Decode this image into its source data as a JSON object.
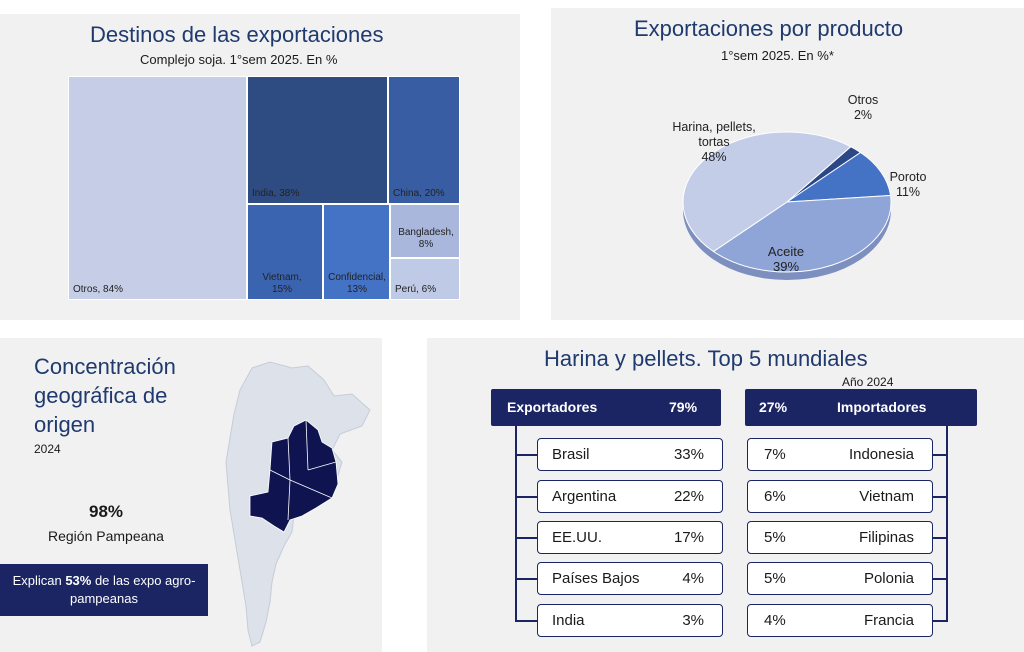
{
  "treemap": {
    "title": "Destinos de las exportaciones",
    "subtitle": "Complejo soja. 1°sem 2025. En %"
  },
  "pie": {
    "title": "Exportaciones por producto",
    "subtitle": "1°sem 2025.  En %*"
  },
  "map_panel": {
    "title": "Concentración geográfica de origen",
    "year": "2024",
    "share": "98%",
    "region": "Región Pampeana",
    "note_prefix": "Explican ",
    "note_bold": "53%",
    "note_suffix": " de las expo agro-pampeanas"
  },
  "top5": {
    "title": "Harina y pellets. Top 5 mundiales",
    "year": "Año 2024",
    "exporters_label": "Exportadores",
    "exporters_total": "79%",
    "importers_label": "Importadores",
    "importers_total": "27%"
  },
  "colors": {
    "navy": "#1b2563",
    "title_blue": "#1f3a6e",
    "panel_bg": "#f1f1f1"
  },
  "chart_data": [
    {
      "type": "treemap",
      "title": "Destinos de las exportaciones",
      "subtitle": "Complejo soja. 1°sem 2025. En %",
      "cells": [
        {
          "label": "Otros, 84%",
          "value": 84,
          "color": "#c5cee6"
        },
        {
          "label": "India, 38%",
          "value": 38,
          "color": "#2e4b82"
        },
        {
          "label": "China, 20%",
          "value": 20,
          "color": "#385da3"
        },
        {
          "label": "Vietnam, 15%",
          "value": 15,
          "color": "#3a64b0"
        },
        {
          "label": "Confidencial, 13%",
          "value": 13,
          "color": "#4472c4"
        },
        {
          "label": "Bangladesh, 8%",
          "value": 8,
          "color": "#a9b7dd"
        },
        {
          "label": "Perú, 6%",
          "value": 6,
          "color": "#bfcae6"
        }
      ]
    },
    {
      "type": "pie",
      "title": "Exportaciones por producto",
      "subtitle": "1°sem 2025.  En %*",
      "slices": [
        {
          "name": "Harina, pellets, tortas",
          "value": 48,
          "color": "#c3cde8"
        },
        {
          "name": "Otros",
          "value": 2,
          "color": "#2b4785"
        },
        {
          "name": "Poroto",
          "value": 11,
          "color": "#4472c4"
        },
        {
          "name": "Aceite",
          "value": 39,
          "color": "#8fa5d8"
        }
      ]
    },
    {
      "type": "table",
      "title": "Harina y pellets. Top 5 mundiales",
      "exporters": [
        {
          "country": "Brasil",
          "share": "33%"
        },
        {
          "country": "Argentina",
          "share": "22%"
        },
        {
          "country": "EE.UU.",
          "share": "17%"
        },
        {
          "country": "Países Bajos",
          "share": "4%"
        },
        {
          "country": "India",
          "share": "3%"
        }
      ],
      "importers": [
        {
          "country": "Indonesia",
          "share": "7%"
        },
        {
          "country": "Vietnam",
          "share": "6%"
        },
        {
          "country": "Filipinas",
          "share": "5%"
        },
        {
          "country": "Polonia",
          "share": "5%"
        },
        {
          "country": "Francia",
          "share": "4%"
        }
      ]
    }
  ]
}
